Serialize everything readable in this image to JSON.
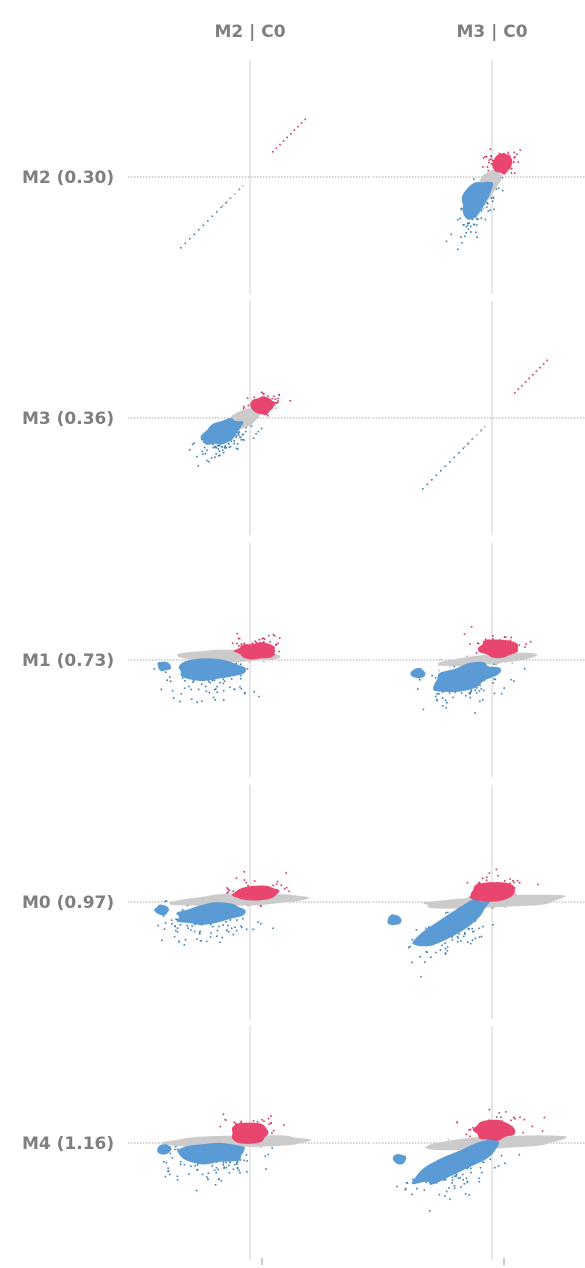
{
  "chart_data": {
    "type": "scatter",
    "columns": [
      "M2 | C0",
      "M3 | C0"
    ],
    "rows": [
      {
        "label": "M2 (0.30)"
      },
      {
        "label": "M3 (0.36)"
      },
      {
        "label": "M1 (0.73)"
      },
      {
        "label": "M0 (0.97)"
      },
      {
        "label": "M4 (1.16)"
      }
    ],
    "series_colors": {
      "negative": "#5b9bd5",
      "neutral": "#cbcbcb",
      "positive": "#e8456f"
    },
    "marginal_dot_colors": {
      "negative": "#3c7fb1",
      "positive": "#d6335f"
    },
    "grid": true,
    "legend": "none"
  }
}
